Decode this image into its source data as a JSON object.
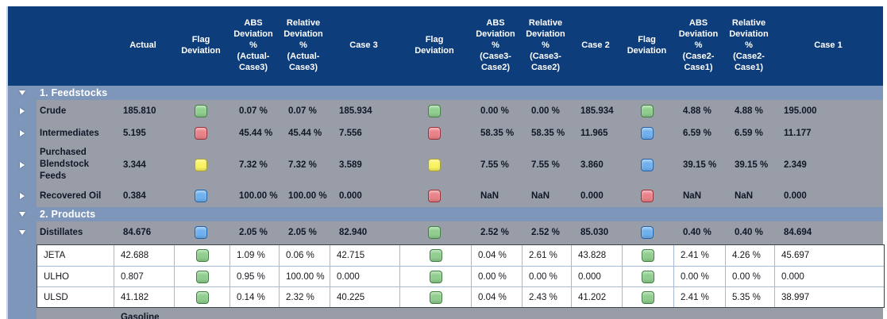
{
  "table": {
    "headers": [
      {
        "id": "actual",
        "label": "Actual"
      },
      {
        "id": "flag-deviation-1",
        "label": "Flag\nDeviation"
      },
      {
        "id": "abs-deviation-1",
        "label": "ABS\nDeviation\n%\n(Actual-\nCase3)"
      },
      {
        "id": "rel-deviation-1",
        "label": "Relative\nDeviation\n%\n(Actual-\nCase3)"
      },
      {
        "id": "case-3",
        "label": "Case 3"
      },
      {
        "id": "flag-deviation-2",
        "label": "Flag\nDeviation"
      },
      {
        "id": "abs-deviation-2",
        "label": "ABS\nDeviation\n%\n(Case3-\nCase2)"
      },
      {
        "id": "rel-deviation-2",
        "label": "Relative\nDeviation\n%\n(Case3-\nCase2)"
      },
      {
        "id": "case-2",
        "label": "Case 2"
      },
      {
        "id": "flag-deviation-3",
        "label": "Flag\nDeviation"
      },
      {
        "id": "abs-deviation-3",
        "label": "ABS\nDeviation\n%\n(Case2-\nCase1)"
      },
      {
        "id": "rel-deviation-3",
        "label": "Relative\nDeviation\n%\n(Case2-\nCase1)"
      },
      {
        "id": "case-1",
        "label": "Case 1"
      }
    ],
    "flag_colors": {
      "green": {
        "fill": "#90CE8E",
        "border": "#3E8040"
      },
      "red": {
        "fill": "#EA8289",
        "border": "#9C3038"
      },
      "yellow": {
        "fill": "#FAF463",
        "border": "#ABA229"
      },
      "blue": {
        "fill": "#6FB1EE",
        "border": "#2063AB"
      }
    },
    "rows": [
      {
        "kind": "section",
        "label": "1. Feedstocks",
        "expanded": true
      },
      {
        "kind": "group",
        "label": "Crude",
        "expanded": false,
        "cells": [
          "185.810",
          {
            "flag": "green"
          },
          "0.07 %",
          "0.07 %",
          "185.934",
          {
            "flag": "green"
          },
          "0.00 %",
          "0.00 %",
          "185.934",
          {
            "flag": "green"
          },
          "4.88 %",
          "4.88 %",
          "195.000"
        ]
      },
      {
        "kind": "group",
        "label": "Intermediates",
        "expanded": false,
        "cells": [
          "5.195",
          {
            "flag": "red"
          },
          "45.44 %",
          "45.44 %",
          "7.556",
          {
            "flag": "red"
          },
          "58.35 %",
          "58.35 %",
          "11.965",
          {
            "flag": "blue"
          },
          "6.59 %",
          "6.59 %",
          "11.177"
        ]
      },
      {
        "kind": "group",
        "label": "Purchased Blendstock Feeds",
        "expanded": false,
        "cells": [
          "3.344",
          {
            "flag": "yellow"
          },
          "7.32 %",
          "7.32 %",
          "3.589",
          {
            "flag": "yellow"
          },
          "7.55 %",
          "7.55 %",
          "3.860",
          {
            "flag": "blue"
          },
          "39.15 %",
          "39.15 %",
          "2.349"
        ]
      },
      {
        "kind": "group",
        "label": "Recovered Oil",
        "expanded": false,
        "cells": [
          "0.384",
          {
            "flag": "blue"
          },
          "100.00 %",
          "100.00 %",
          "0.000",
          {
            "flag": "red"
          },
          "NaN",
          "NaN",
          "0.000",
          {
            "flag": "red"
          },
          "NaN",
          "NaN",
          "0.000"
        ]
      },
      {
        "kind": "section",
        "label": "2. Products",
        "expanded": true
      },
      {
        "kind": "group",
        "label": "Distillates",
        "expanded": true,
        "cells": [
          "84.676",
          {
            "flag": "blue"
          },
          "2.05 %",
          "2.05 %",
          "82.940",
          {
            "flag": "green"
          },
          "2.52 %",
          "2.52 %",
          "85.030",
          {
            "flag": "blue"
          },
          "0.40 %",
          "0.40 %",
          "84.694"
        ]
      },
      {
        "kind": "sub",
        "label": "JETA",
        "cells": [
          "42.688",
          {
            "flag": "green"
          },
          "1.09 %",
          "0.06 %",
          "42.715",
          {
            "flag": "green"
          },
          "0.04 %",
          "2.61 %",
          "43.828",
          {
            "flag": "green"
          },
          "2.41 %",
          "4.26 %",
          "45.697"
        ]
      },
      {
        "kind": "sub",
        "label": "ULHO",
        "cells": [
          "0.807",
          {
            "flag": "green"
          },
          "0.95 %",
          "100.00 %",
          "0.000",
          {
            "flag": "green"
          },
          "0.00 %",
          "0.00 %",
          "0.000",
          {
            "flag": "green"
          },
          "0.00 %",
          "0.00 %",
          "0.000"
        ]
      },
      {
        "kind": "sub",
        "label": "ULSD",
        "cells": [
          "41.182",
          {
            "flag": "green"
          },
          "0.14 %",
          "2.32 %",
          "40.225",
          {
            "flag": "green"
          },
          "0.04 %",
          "2.43 %",
          "41.202",
          {
            "flag": "green"
          },
          "2.41 %",
          "5.35 %",
          "38.997"
        ]
      },
      {
        "kind": "partial",
        "label": "Gasoline"
      }
    ]
  }
}
